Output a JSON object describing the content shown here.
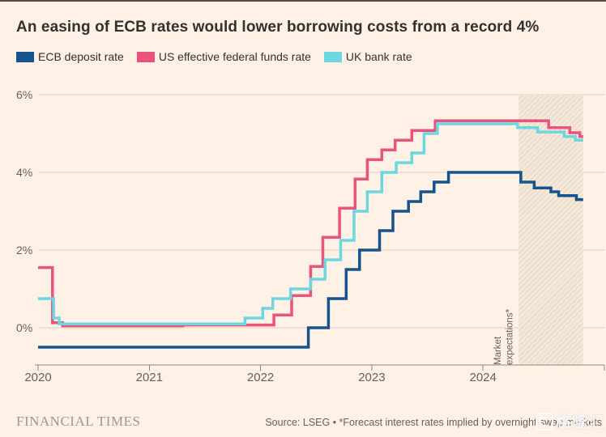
{
  "title": "An easing of ECB rates would lower borrowing costs from a record 4%",
  "legend": [
    {
      "label": "ECB deposit rate",
      "color": "#15538c"
    },
    {
      "label": "US effective federal funds rate",
      "color": "#e9537e"
    },
    {
      "label": "UK bank rate",
      "color": "#6bd8e0"
    }
  ],
  "chart_data": {
    "type": "line",
    "subtype": "step",
    "title": "An easing of ECB rates would lower borrowing costs from a record 4%",
    "xlabel": "",
    "ylabel": "",
    "x_range": [
      2020.0,
      2024.9
    ],
    "x_end": 2024.9,
    "ylim": [
      -0.75,
      6.3
    ],
    "grid": "horizontal",
    "legend_position": "top",
    "y_ticks": [
      {
        "value": 0,
        "label": "0%"
      },
      {
        "value": 2,
        "label": "2%"
      },
      {
        "value": 4,
        "label": "4%"
      },
      {
        "value": 6,
        "label": "6%"
      }
    ],
    "x_ticks": [
      {
        "value": 2020,
        "label": "2020"
      },
      {
        "value": 2021,
        "label": "2021"
      },
      {
        "value": 2022,
        "label": "2022"
      },
      {
        "value": 2023,
        "label": "2023"
      },
      {
        "value": 2024,
        "label": "2024"
      }
    ],
    "forecast_region": {
      "start": 2024.32,
      "end": 2024.9,
      "label": "Market expectations*"
    },
    "series": [
      {
        "id": "us-effective-federal-funds-rate",
        "name": "US effective federal funds rate",
        "color": "#e9537e",
        "points": [
          [
            2020.0,
            1.55
          ],
          [
            2020.13,
            0.13
          ],
          [
            2020.22,
            0.05
          ],
          [
            2021.3,
            0.07
          ],
          [
            2022.12,
            0.33
          ],
          [
            2022.28,
            0.83
          ],
          [
            2022.45,
            1.58
          ],
          [
            2022.56,
            2.33
          ],
          [
            2022.71,
            3.08
          ],
          [
            2022.85,
            3.83
          ],
          [
            2022.96,
            4.33
          ],
          [
            2023.09,
            4.58
          ],
          [
            2023.21,
            4.83
          ],
          [
            2023.36,
            5.08
          ],
          [
            2023.57,
            5.33
          ],
          [
            2024.59,
            5.15
          ],
          [
            2024.78,
            5.02
          ],
          [
            2024.87,
            4.92
          ]
        ]
      },
      {
        "id": "uk-bank-rate",
        "name": "UK bank rate",
        "color": "#6bd8e0",
        "points": [
          [
            2020.0,
            0.75
          ],
          [
            2020.14,
            0.25
          ],
          [
            2020.19,
            0.1
          ],
          [
            2021.86,
            0.25
          ],
          [
            2022.02,
            0.5
          ],
          [
            2022.11,
            0.75
          ],
          [
            2022.27,
            1.0
          ],
          [
            2022.45,
            1.25
          ],
          [
            2022.58,
            1.75
          ],
          [
            2022.72,
            2.25
          ],
          [
            2022.84,
            3.0
          ],
          [
            2022.96,
            3.5
          ],
          [
            2023.09,
            4.0
          ],
          [
            2023.22,
            4.25
          ],
          [
            2023.36,
            4.5
          ],
          [
            2023.47,
            5.0
          ],
          [
            2023.59,
            5.25
          ],
          [
            2024.31,
            5.15
          ],
          [
            2024.49,
            5.04
          ],
          [
            2024.73,
            4.92
          ],
          [
            2024.83,
            4.83
          ]
        ]
      },
      {
        "id": "ecb-deposit-rate",
        "name": "ECB deposit rate",
        "color": "#15538c",
        "points": [
          [
            2020.0,
            -0.5
          ],
          [
            2022.43,
            0.0
          ],
          [
            2022.61,
            0.75
          ],
          [
            2022.77,
            1.5
          ],
          [
            2022.89,
            2.0
          ],
          [
            2023.07,
            2.5
          ],
          [
            2023.19,
            3.0
          ],
          [
            2023.33,
            3.25
          ],
          [
            2023.44,
            3.5
          ],
          [
            2023.56,
            3.75
          ],
          [
            2023.69,
            4.0
          ],
          [
            2024.34,
            3.75
          ],
          [
            2024.46,
            3.6
          ],
          [
            2024.61,
            3.5
          ],
          [
            2024.68,
            3.4
          ],
          [
            2024.84,
            3.3
          ]
        ]
      }
    ]
  },
  "footer": {
    "brand": "FINANCIAL TIMES",
    "source": "Source: LSEG • *Forecast interest rates implied by overnight swap markets"
  },
  "watermark": {
    "text": "格隆汇"
  }
}
